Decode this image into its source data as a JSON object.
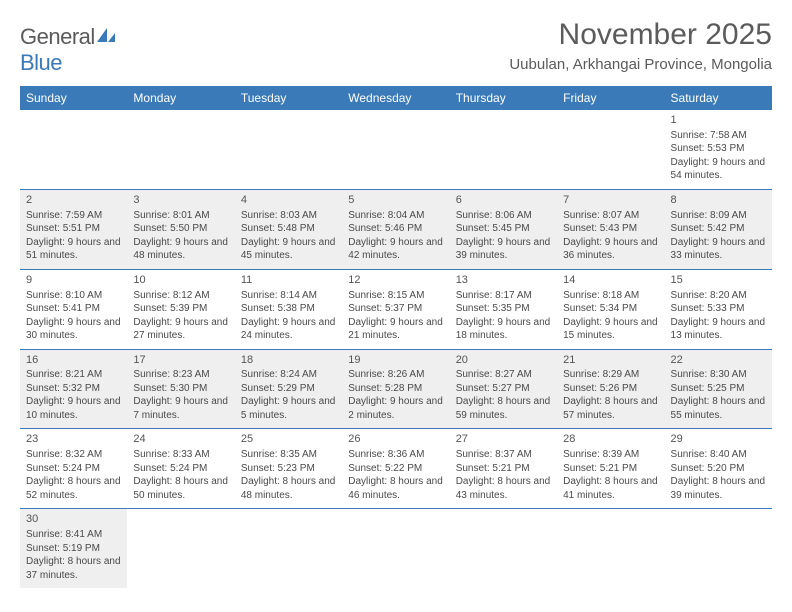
{
  "logo": {
    "text1": "General",
    "text2": "Blue"
  },
  "title": "November 2025",
  "location": "Uubulan, Arkhangai Province, Mongolia",
  "colors": {
    "header_bg": "#3a7ab8",
    "header_text": "#ffffff",
    "shade_bg": "#efefef",
    "border": "#3a7ab8",
    "text": "#4a4a4a",
    "title_text": "#5b5b5b"
  },
  "typography": {
    "title_fontsize": 30,
    "location_fontsize": 15,
    "daylabel_fontsize": 12,
    "cell_fontsize": 10
  },
  "day_labels": [
    "Sunday",
    "Monday",
    "Tuesday",
    "Wednesday",
    "Thursday",
    "Friday",
    "Saturday"
  ],
  "weeks": [
    {
      "shade": false,
      "days": [
        null,
        null,
        null,
        null,
        null,
        null,
        {
          "n": "1",
          "sr": "Sunrise: 7:58 AM",
          "ss": "Sunset: 5:53 PM",
          "dl": "Daylight: 9 hours and 54 minutes."
        }
      ]
    },
    {
      "shade": true,
      "days": [
        {
          "n": "2",
          "sr": "Sunrise: 7:59 AM",
          "ss": "Sunset: 5:51 PM",
          "dl": "Daylight: 9 hours and 51 minutes."
        },
        {
          "n": "3",
          "sr": "Sunrise: 8:01 AM",
          "ss": "Sunset: 5:50 PM",
          "dl": "Daylight: 9 hours and 48 minutes."
        },
        {
          "n": "4",
          "sr": "Sunrise: 8:03 AM",
          "ss": "Sunset: 5:48 PM",
          "dl": "Daylight: 9 hours and 45 minutes."
        },
        {
          "n": "5",
          "sr": "Sunrise: 8:04 AM",
          "ss": "Sunset: 5:46 PM",
          "dl": "Daylight: 9 hours and 42 minutes."
        },
        {
          "n": "6",
          "sr": "Sunrise: 8:06 AM",
          "ss": "Sunset: 5:45 PM",
          "dl": "Daylight: 9 hours and 39 minutes."
        },
        {
          "n": "7",
          "sr": "Sunrise: 8:07 AM",
          "ss": "Sunset: 5:43 PM",
          "dl": "Daylight: 9 hours and 36 minutes."
        },
        {
          "n": "8",
          "sr": "Sunrise: 8:09 AM",
          "ss": "Sunset: 5:42 PM",
          "dl": "Daylight: 9 hours and 33 minutes."
        }
      ]
    },
    {
      "shade": false,
      "days": [
        {
          "n": "9",
          "sr": "Sunrise: 8:10 AM",
          "ss": "Sunset: 5:41 PM",
          "dl": "Daylight: 9 hours and 30 minutes."
        },
        {
          "n": "10",
          "sr": "Sunrise: 8:12 AM",
          "ss": "Sunset: 5:39 PM",
          "dl": "Daylight: 9 hours and 27 minutes."
        },
        {
          "n": "11",
          "sr": "Sunrise: 8:14 AM",
          "ss": "Sunset: 5:38 PM",
          "dl": "Daylight: 9 hours and 24 minutes."
        },
        {
          "n": "12",
          "sr": "Sunrise: 8:15 AM",
          "ss": "Sunset: 5:37 PM",
          "dl": "Daylight: 9 hours and 21 minutes."
        },
        {
          "n": "13",
          "sr": "Sunrise: 8:17 AM",
          "ss": "Sunset: 5:35 PM",
          "dl": "Daylight: 9 hours and 18 minutes."
        },
        {
          "n": "14",
          "sr": "Sunrise: 8:18 AM",
          "ss": "Sunset: 5:34 PM",
          "dl": "Daylight: 9 hours and 15 minutes."
        },
        {
          "n": "15",
          "sr": "Sunrise: 8:20 AM",
          "ss": "Sunset: 5:33 PM",
          "dl": "Daylight: 9 hours and 13 minutes."
        }
      ]
    },
    {
      "shade": true,
      "days": [
        {
          "n": "16",
          "sr": "Sunrise: 8:21 AM",
          "ss": "Sunset: 5:32 PM",
          "dl": "Daylight: 9 hours and 10 minutes."
        },
        {
          "n": "17",
          "sr": "Sunrise: 8:23 AM",
          "ss": "Sunset: 5:30 PM",
          "dl": "Daylight: 9 hours and 7 minutes."
        },
        {
          "n": "18",
          "sr": "Sunrise: 8:24 AM",
          "ss": "Sunset: 5:29 PM",
          "dl": "Daylight: 9 hours and 5 minutes."
        },
        {
          "n": "19",
          "sr": "Sunrise: 8:26 AM",
          "ss": "Sunset: 5:28 PM",
          "dl": "Daylight: 9 hours and 2 minutes."
        },
        {
          "n": "20",
          "sr": "Sunrise: 8:27 AM",
          "ss": "Sunset: 5:27 PM",
          "dl": "Daylight: 8 hours and 59 minutes."
        },
        {
          "n": "21",
          "sr": "Sunrise: 8:29 AM",
          "ss": "Sunset: 5:26 PM",
          "dl": "Daylight: 8 hours and 57 minutes."
        },
        {
          "n": "22",
          "sr": "Sunrise: 8:30 AM",
          "ss": "Sunset: 5:25 PM",
          "dl": "Daylight: 8 hours and 55 minutes."
        }
      ]
    },
    {
      "shade": false,
      "days": [
        {
          "n": "23",
          "sr": "Sunrise: 8:32 AM",
          "ss": "Sunset: 5:24 PM",
          "dl": "Daylight: 8 hours and 52 minutes."
        },
        {
          "n": "24",
          "sr": "Sunrise: 8:33 AM",
          "ss": "Sunset: 5:24 PM",
          "dl": "Daylight: 8 hours and 50 minutes."
        },
        {
          "n": "25",
          "sr": "Sunrise: 8:35 AM",
          "ss": "Sunset: 5:23 PM",
          "dl": "Daylight: 8 hours and 48 minutes."
        },
        {
          "n": "26",
          "sr": "Sunrise: 8:36 AM",
          "ss": "Sunset: 5:22 PM",
          "dl": "Daylight: 8 hours and 46 minutes."
        },
        {
          "n": "27",
          "sr": "Sunrise: 8:37 AM",
          "ss": "Sunset: 5:21 PM",
          "dl": "Daylight: 8 hours and 43 minutes."
        },
        {
          "n": "28",
          "sr": "Sunrise: 8:39 AM",
          "ss": "Sunset: 5:21 PM",
          "dl": "Daylight: 8 hours and 41 minutes."
        },
        {
          "n": "29",
          "sr": "Sunrise: 8:40 AM",
          "ss": "Sunset: 5:20 PM",
          "dl": "Daylight: 8 hours and 39 minutes."
        }
      ]
    },
    {
      "shade": true,
      "days": [
        {
          "n": "30",
          "sr": "Sunrise: 8:41 AM",
          "ss": "Sunset: 5:19 PM",
          "dl": "Daylight: 8 hours and 37 minutes."
        },
        null,
        null,
        null,
        null,
        null,
        null
      ]
    }
  ]
}
